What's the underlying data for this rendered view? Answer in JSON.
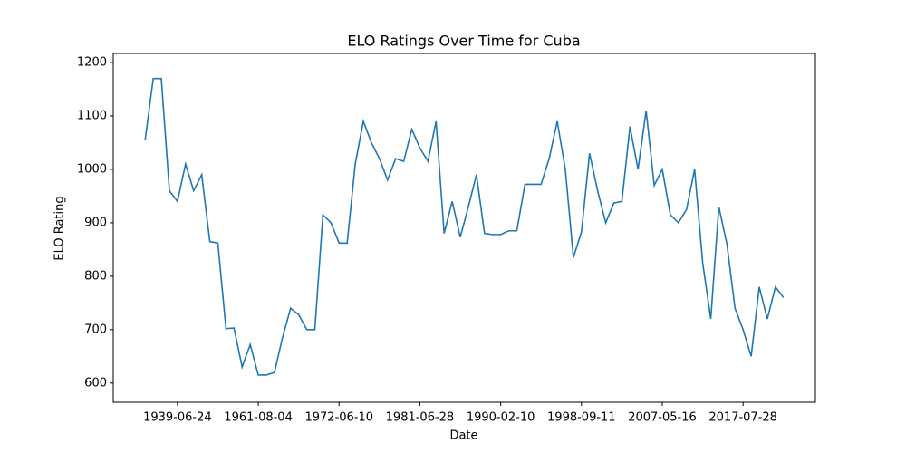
{
  "chart_data": {
    "type": "line",
    "title": "ELO Ratings Over Time for Cuba",
    "x_label": "Date",
    "y_label": "ELO Rating",
    "categories": [
      null,
      null,
      null,
      null,
      "1939-06-24",
      null,
      null,
      null,
      null,
      null,
      null,
      null,
      null,
      null,
      "1961-08-04",
      null,
      null,
      null,
      null,
      null,
      null,
      null,
      null,
      null,
      "1972-06-10",
      null,
      null,
      null,
      null,
      null,
      null,
      null,
      null,
      null,
      "1981-06-28",
      null,
      null,
      null,
      null,
      null,
      null,
      null,
      null,
      null,
      "1990-02-10",
      null,
      null,
      null,
      null,
      null,
      null,
      null,
      null,
      null,
      "1998-09-11",
      null,
      null,
      null,
      null,
      null,
      null,
      null,
      null,
      null,
      "2007-05-16",
      null,
      null,
      null,
      null,
      null,
      null,
      null,
      null,
      null,
      "2017-07-28",
      null,
      null,
      null,
      null,
      null
    ],
    "series": [
      {
        "name": "Cuba",
        "color": "#1f77b4",
        "values": [
          1055,
          1170,
          1170,
          960,
          940,
          1010,
          960,
          990,
          865,
          862,
          702,
          703,
          630,
          672,
          615,
          615,
          620,
          685,
          740,
          728,
          700,
          700,
          915,
          900,
          862,
          862,
          1010,
          1090,
          1050,
          1020,
          980,
          1020,
          1015,
          1075,
          1040,
          1015,
          1090,
          880,
          940,
          873,
          930,
          990,
          880,
          878,
          878,
          885,
          885,
          972,
          972,
          972,
          1020,
          1090,
          1000,
          835,
          883,
          1030,
          960,
          900,
          937,
          940,
          1080,
          1000,
          1110,
          970,
          1000,
          915,
          900,
          925,
          1000,
          825,
          720,
          930,
          860,
          740,
          700,
          650,
          780,
          720,
          780,
          760
        ]
      }
    ],
    "ylim": [
      564,
      1217
    ],
    "yticks": [
      600,
      700,
      800,
      900,
      1000,
      1100,
      1200
    ],
    "grid": false
  }
}
